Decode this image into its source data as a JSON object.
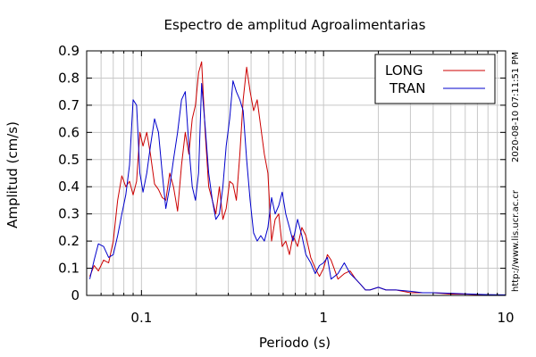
{
  "chart_data": {
    "type": "line",
    "title": "Espectro de amplitud Agroalimentarias",
    "xlabel": "Periodo (s)",
    "ylabel": "Amplitud (cm/s)",
    "xscale": "log",
    "xlim": [
      0.05,
      10
    ],
    "ylim": [
      0,
      0.9
    ],
    "xticks": [
      {
        "value": 0.1,
        "label": "0.1"
      },
      {
        "value": 1,
        "label": "1"
      },
      {
        "value": 10,
        "label": "10"
      }
    ],
    "yticks": [
      {
        "value": 0,
        "label": "0"
      },
      {
        "value": 0.1,
        "label": "0.1"
      },
      {
        "value": 0.2,
        "label": "0.2"
      },
      {
        "value": 0.3,
        "label": "0.3"
      },
      {
        "value": 0.4,
        "label": "0.4"
      },
      {
        "value": 0.5,
        "label": "0.5"
      },
      {
        "value": 0.6,
        "label": "0.6"
      },
      {
        "value": 0.7,
        "label": "0.7"
      },
      {
        "value": 0.8,
        "label": "0.8"
      },
      {
        "value": 0.9,
        "label": "0.9"
      }
    ],
    "grid": true,
    "legend_position": "top-right",
    "timestamp": "2020-08-10 07:11:51 PM",
    "url": "http://www.lis.ucr.ac.cr",
    "series": [
      {
        "name": "LONG",
        "color": "#cc0000",
        "x": [
          0.052,
          0.055,
          0.058,
          0.062,
          0.066,
          0.07,
          0.074,
          0.078,
          0.082,
          0.086,
          0.09,
          0.094,
          0.098,
          0.102,
          0.107,
          0.112,
          0.118,
          0.124,
          0.13,
          0.136,
          0.143,
          0.15,
          0.158,
          0.166,
          0.174,
          0.182,
          0.19,
          0.198,
          0.206,
          0.214,
          0.224,
          0.234,
          0.245,
          0.256,
          0.268,
          0.28,
          0.292,
          0.305,
          0.318,
          0.332,
          0.347,
          0.362,
          0.378,
          0.395,
          0.413,
          0.432,
          0.452,
          0.473,
          0.495,
          0.518,
          0.542,
          0.567,
          0.593,
          0.62,
          0.65,
          0.68,
          0.72,
          0.76,
          0.8,
          0.85,
          0.9,
          0.95,
          1.0,
          1.05,
          1.1,
          1.2,
          1.3,
          1.4,
          1.5,
          1.6,
          1.7,
          1.8,
          2.0,
          2.2,
          2.5,
          3.0,
          3.5,
          4.0,
          5.0,
          6.0,
          7.0,
          8.0,
          10.0
        ],
        "y": [
          0.07,
          0.11,
          0.09,
          0.13,
          0.12,
          0.2,
          0.35,
          0.44,
          0.4,
          0.42,
          0.37,
          0.42,
          0.6,
          0.55,
          0.6,
          0.52,
          0.41,
          0.39,
          0.36,
          0.35,
          0.45,
          0.4,
          0.31,
          0.48,
          0.6,
          0.52,
          0.65,
          0.7,
          0.82,
          0.86,
          0.6,
          0.4,
          0.35,
          0.3,
          0.4,
          0.28,
          0.32,
          0.42,
          0.41,
          0.35,
          0.52,
          0.72,
          0.84,
          0.75,
          0.68,
          0.72,
          0.62,
          0.52,
          0.45,
          0.2,
          0.28,
          0.3,
          0.18,
          0.2,
          0.15,
          0.22,
          0.18,
          0.25,
          0.22,
          0.14,
          0.1,
          0.07,
          0.1,
          0.15,
          0.13,
          0.06,
          0.08,
          0.09,
          0.06,
          0.04,
          0.02,
          0.02,
          0.03,
          0.02,
          0.02,
          0.01,
          0.01,
          0.01,
          0.005,
          0.005,
          0.003,
          0.002,
          0.001
        ]
      },
      {
        "name": "TRAN",
        "color": "#0000cc",
        "x": [
          0.052,
          0.055,
          0.058,
          0.062,
          0.066,
          0.07,
          0.074,
          0.078,
          0.082,
          0.086,
          0.09,
          0.094,
          0.098,
          0.102,
          0.107,
          0.112,
          0.118,
          0.124,
          0.13,
          0.136,
          0.143,
          0.15,
          0.158,
          0.166,
          0.174,
          0.182,
          0.19,
          0.198,
          0.206,
          0.214,
          0.224,
          0.234,
          0.245,
          0.256,
          0.268,
          0.28,
          0.292,
          0.305,
          0.318,
          0.332,
          0.347,
          0.362,
          0.378,
          0.395,
          0.413,
          0.432,
          0.452,
          0.473,
          0.495,
          0.518,
          0.542,
          0.567,
          0.593,
          0.62,
          0.65,
          0.68,
          0.72,
          0.76,
          0.8,
          0.85,
          0.9,
          0.95,
          1.0,
          1.05,
          1.1,
          1.2,
          1.3,
          1.4,
          1.5,
          1.6,
          1.7,
          1.8,
          2.0,
          2.2,
          2.5,
          3.0,
          3.5,
          4.0,
          5.0,
          6.0,
          7.0,
          8.0,
          10.0
        ],
        "y": [
          0.06,
          0.13,
          0.19,
          0.18,
          0.14,
          0.15,
          0.22,
          0.3,
          0.37,
          0.48,
          0.72,
          0.7,
          0.45,
          0.38,
          0.45,
          0.55,
          0.65,
          0.6,
          0.45,
          0.32,
          0.4,
          0.5,
          0.6,
          0.72,
          0.75,
          0.55,
          0.4,
          0.35,
          0.45,
          0.78,
          0.62,
          0.45,
          0.35,
          0.28,
          0.3,
          0.4,
          0.55,
          0.65,
          0.79,
          0.75,
          0.72,
          0.68,
          0.5,
          0.35,
          0.23,
          0.2,
          0.22,
          0.2,
          0.25,
          0.36,
          0.3,
          0.33,
          0.38,
          0.3,
          0.25,
          0.2,
          0.28,
          0.22,
          0.15,
          0.12,
          0.08,
          0.11,
          0.12,
          0.14,
          0.06,
          0.08,
          0.12,
          0.08,
          0.06,
          0.04,
          0.02,
          0.02,
          0.03,
          0.02,
          0.02,
          0.015,
          0.01,
          0.01,
          0.008,
          0.006,
          0.004,
          0.003,
          0.002
        ]
      }
    ]
  }
}
